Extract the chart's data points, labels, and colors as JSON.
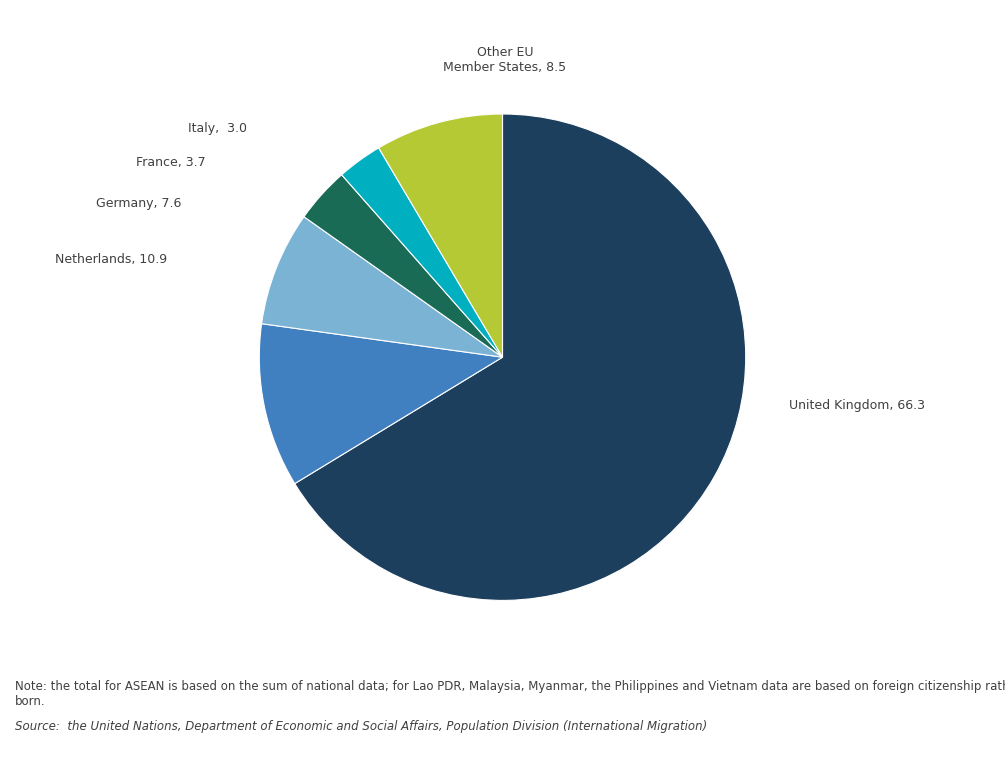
{
  "values": [
    66.3,
    10.9,
    7.6,
    3.7,
    3.0,
    8.5
  ],
  "colors": [
    "#1c3f5e",
    "#4080c0",
    "#7ab3d4",
    "#1a6b55",
    "#00afc0",
    "#b5c934"
  ],
  "note": "Note: the total for ASEAN is based on the sum of national data; for Lao PDR, Malaysia, Myanmar, the Philippines and Vietnam data are based on foreign citizenship rather than foreign\nborn.",
  "source": "Source:  the United Nations, Department of Economic and Social Affairs, Population Division (International Migration)",
  "background_color": "#ffffff",
  "label_fontsize": 9,
  "note_fontsize": 8.5
}
